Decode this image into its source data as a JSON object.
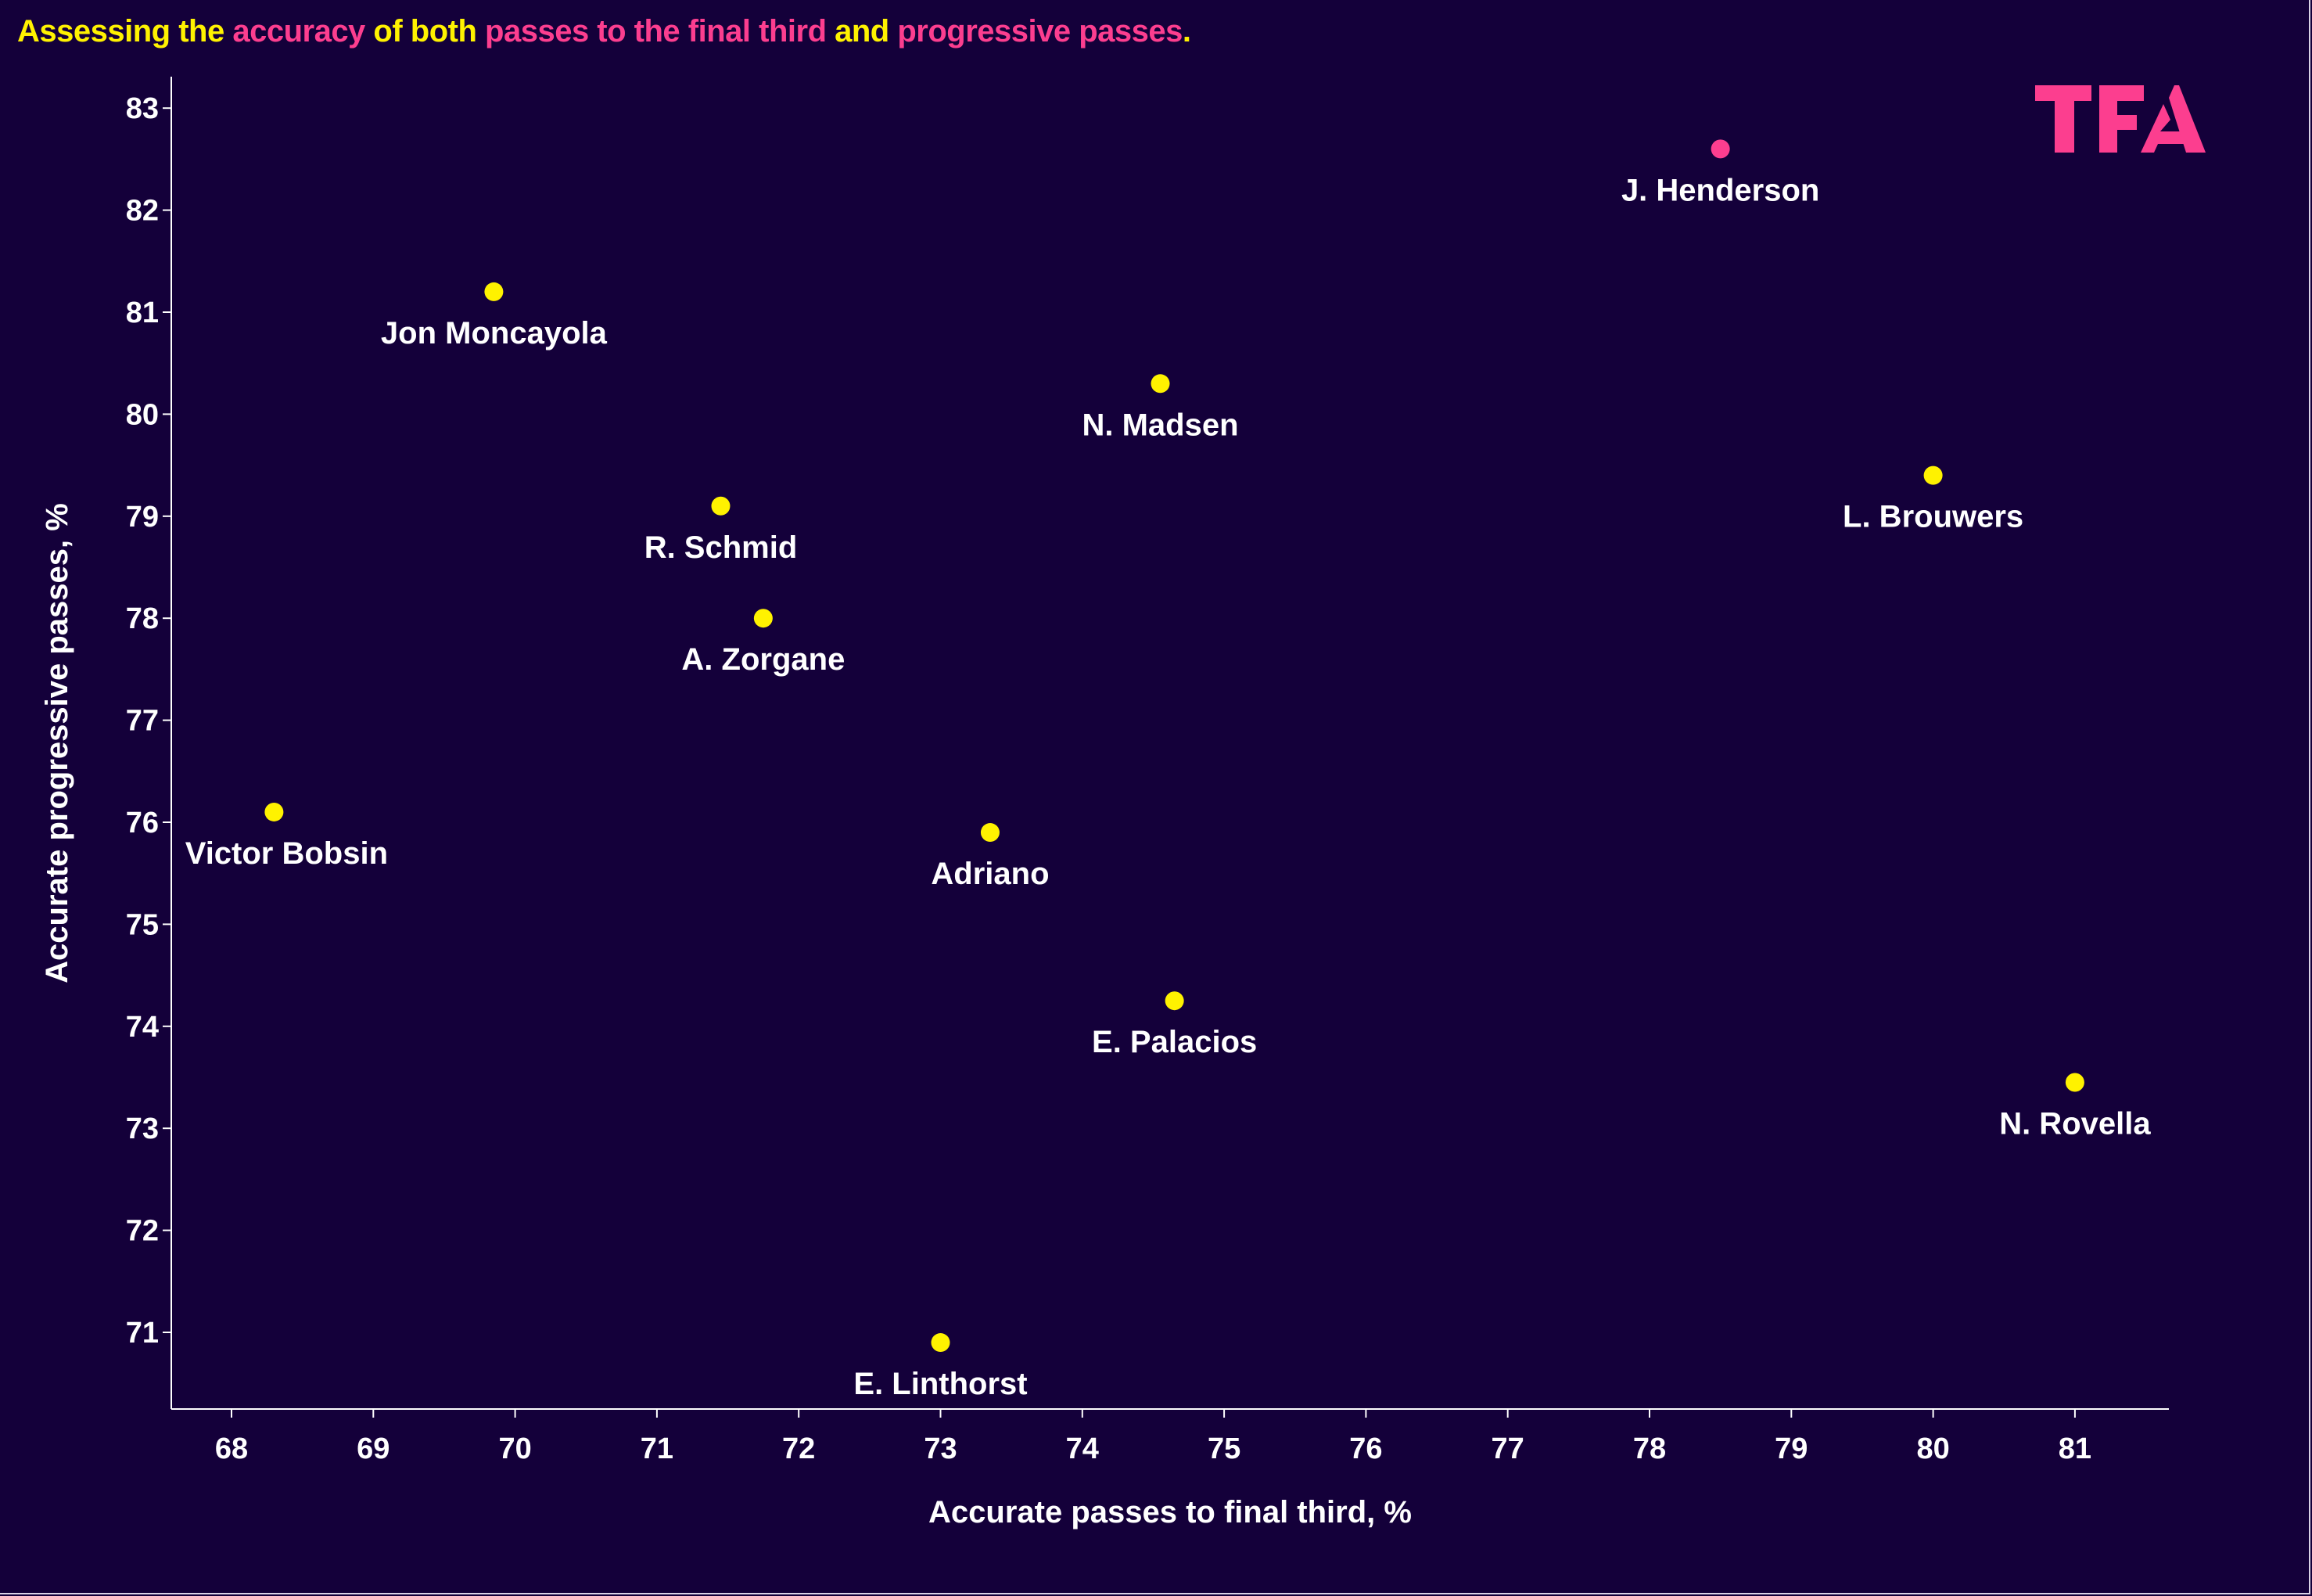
{
  "title": {
    "segments": [
      {
        "text": "Assessing the ",
        "color": "#fff200"
      },
      {
        "text": "accuracy",
        "color": "#fc3e8f"
      },
      {
        "text": " of both ",
        "color": "#fff200"
      },
      {
        "text": "passes to the final third",
        "color": "#fc3e8f"
      },
      {
        "text": " and ",
        "color": "#fff200"
      },
      {
        "text": "progressive passes",
        "color": "#fc3e8f"
      },
      {
        "text": ".",
        "color": "#fff200"
      }
    ]
  },
  "logo": {
    "text": "TFA",
    "color": "#fc3e8f"
  },
  "colors": {
    "background": "#14003a",
    "default_point": "#fff200",
    "highlight_point": "#fc3e8f",
    "axis": "#ffffff"
  },
  "chart_data": {
    "type": "scatter",
    "xlabel": "Accurate passes to final third, %",
    "ylabel": "Accurate progressive passes, %",
    "xlim": [
      67.6,
      82.1
    ],
    "ylim": [
      70.3,
      83.3
    ],
    "xticks": [
      68,
      69,
      70,
      71,
      72,
      73,
      74,
      75,
      76,
      77,
      78,
      79,
      80,
      81
    ],
    "yticks": [
      71,
      72,
      73,
      74,
      75,
      76,
      77,
      78,
      79,
      80,
      81,
      82,
      83
    ],
    "grid": false,
    "points": [
      {
        "label": "J. Henderson",
        "x": 78.5,
        "y": 82.6,
        "highlight": true
      },
      {
        "label": "Jon Moncayola",
        "x": 69.85,
        "y": 81.2,
        "highlight": false
      },
      {
        "label": "N. Madsen",
        "x": 74.55,
        "y": 80.3,
        "highlight": false
      },
      {
        "label": "L. Brouwers",
        "x": 80.0,
        "y": 79.4,
        "highlight": false
      },
      {
        "label": "R. Schmid",
        "x": 71.45,
        "y": 79.1,
        "highlight": false
      },
      {
        "label": "A. Zorgane",
        "x": 71.75,
        "y": 78.0,
        "highlight": false
      },
      {
        "label": "Victor Bobsin",
        "x": 68.3,
        "y": 76.1,
        "highlight": false
      },
      {
        "label": "Adriano",
        "x": 73.35,
        "y": 75.9,
        "highlight": false
      },
      {
        "label": "E. Palacios",
        "x": 74.65,
        "y": 74.25,
        "highlight": false
      },
      {
        "label": "N. Rovella",
        "x": 81.0,
        "y": 73.45,
        "highlight": false
      },
      {
        "label": "E. Linthorst",
        "x": 73.0,
        "y": 70.9,
        "highlight": false
      }
    ]
  }
}
